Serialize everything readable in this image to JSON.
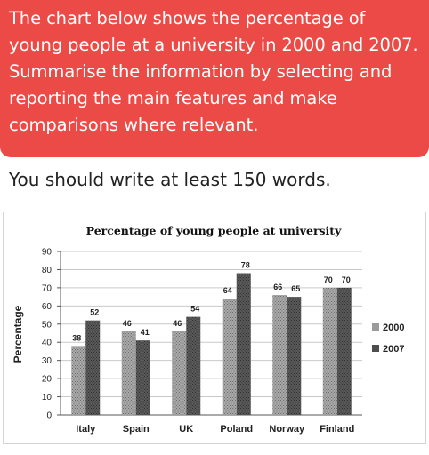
{
  "task": {
    "prompt": "The chart below shows the percentage of young people at a university in 2000 and 2007. Summarise the information by selecting and reporting the main features and make comparisons where relevant.",
    "instruction": "You should write at least 150 words."
  },
  "colors": {
    "banner": "#ec4a46",
    "series_2000": "#9a9a9a",
    "series_2007": "#4d4d4d"
  },
  "chart_data": {
    "type": "bar",
    "title": "Percentage of young people at university",
    "xlabel": "",
    "ylabel": "Percentage",
    "ylim": [
      0,
      90
    ],
    "yticks": [
      0,
      10,
      20,
      30,
      40,
      50,
      60,
      70,
      80,
      90
    ],
    "grid": true,
    "legend": "right",
    "categories": [
      "Italy",
      "Spain",
      "UK",
      "Poland",
      "Norway",
      "Finland"
    ],
    "series": [
      {
        "name": "2000",
        "values": [
          38,
          46,
          46,
          64,
          66,
          70
        ]
      },
      {
        "name": "2007",
        "values": [
          52,
          41,
          54,
          78,
          65,
          70
        ]
      }
    ]
  }
}
